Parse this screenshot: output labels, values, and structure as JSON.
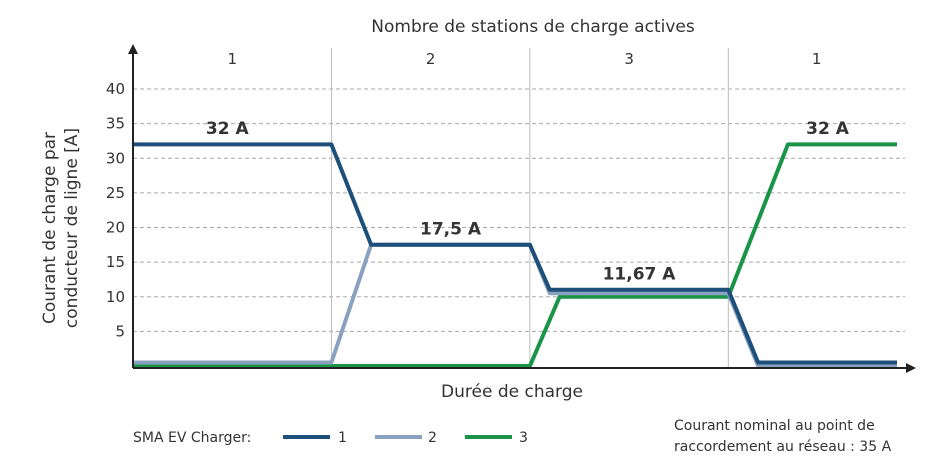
{
  "chart_data": {
    "type": "line",
    "title": "Nombre de stations de charge actives",
    "xlabel": "Durée de charge",
    "ylabel_line1": "Courant de charge par",
    "ylabel_line2": "conducteur de ligne [A]",
    "ylim": [
      0,
      40
    ],
    "yticks": [
      "5",
      "10",
      "15",
      "20",
      "25",
      "30",
      "35",
      "40"
    ],
    "grid": true,
    "phases": [
      {
        "label": "1",
        "x_range": [
          0,
          20
        ]
      },
      {
        "label": "2",
        "x_range": [
          20,
          40
        ]
      },
      {
        "label": "3",
        "x_range": [
          40,
          60
        ]
      },
      {
        "label": "1",
        "x_range": [
          60,
          77
        ]
      }
    ],
    "annotations": [
      {
        "text": "32 A",
        "x": 9.5,
        "y": 33.5
      },
      {
        "text": "17,5 A",
        "x": 32,
        "y": 19
      },
      {
        "text": "11,67 A",
        "x": 51,
        "y": 12.5
      },
      {
        "text": "32 A",
        "x": 70,
        "y": 33.5
      }
    ],
    "series": [
      {
        "name": "1",
        "color": "#1d4f7a",
        "points": [
          [
            0,
            32
          ],
          [
            20,
            32
          ],
          [
            24,
            17.5
          ],
          [
            40,
            17.5
          ],
          [
            42,
            11
          ],
          [
            60,
            11
          ],
          [
            63,
            0.5
          ],
          [
            77,
            0.5
          ]
        ]
      },
      {
        "name": "2",
        "color": "#8aa2c0",
        "points": [
          [
            0,
            0.5
          ],
          [
            20,
            0.5
          ],
          [
            24,
            17.5
          ],
          [
            40,
            17.5
          ],
          [
            42,
            10.5
          ],
          [
            60,
            10.5
          ],
          [
            63,
            0
          ],
          [
            77,
            0
          ]
        ]
      },
      {
        "name": "3",
        "color": "#1a9447",
        "points": [
          [
            0,
            0
          ],
          [
            40,
            0
          ],
          [
            43,
            10
          ],
          [
            60,
            10
          ],
          [
            66,
            32
          ],
          [
            77,
            32
          ]
        ]
      }
    ],
    "legend": {
      "title": "SMA EV Charger:",
      "placement": "bottom-left"
    },
    "note_line1": "Courant nominal au point de",
    "note_line2": "raccordement au réseau : 35 A"
  }
}
